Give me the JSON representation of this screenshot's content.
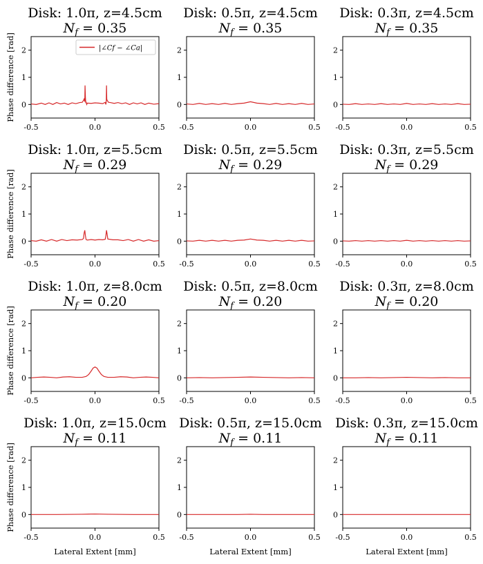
{
  "chart_data": {
    "type": "line",
    "layout": "4x3 grid of small-multiple line plots",
    "series_color": "#d62728",
    "ylabel": "Phase difference [rad]",
    "xlabel": "Lateral Extent [mm]",
    "xlim": [
      -0.5,
      0.5
    ],
    "ylim": [
      -0.5,
      2.5
    ],
    "xticks": [
      "-0.5",
      "0.0",
      "0.5"
    ],
    "yticks": [
      0,
      1,
      2
    ],
    "legend": {
      "label": "|∠Cf − ∠Ca|",
      "placement": "top-right",
      "panel": "row1-col1"
    },
    "nf_prefix": "N",
    "nf_sub": "f",
    "nf_eq": " = ",
    "panels": [
      {
        "title": "Disk: 1.0π, z=4.5cm",
        "nf": "0.35",
        "x": [
          -0.5,
          -0.46,
          -0.42,
          -0.39,
          -0.36,
          -0.33,
          -0.3,
          -0.27,
          -0.24,
          -0.21,
          -0.18,
          -0.15,
          -0.12,
          -0.1,
          -0.09,
          -0.085,
          -0.08,
          -0.078,
          -0.075,
          -0.072,
          -0.07,
          -0.065,
          -0.06,
          -0.03,
          0.0,
          0.03,
          0.06,
          0.08,
          0.085,
          0.088,
          0.09,
          0.092,
          0.095,
          0.1,
          0.105,
          0.12,
          0.15,
          0.18,
          0.21,
          0.24,
          0.27,
          0.3,
          0.33,
          0.36,
          0.39,
          0.42,
          0.46,
          0.5
        ],
        "y": [
          0.02,
          0.0,
          0.05,
          0.0,
          0.06,
          0.0,
          0.07,
          0.02,
          0.05,
          0.0,
          0.06,
          0.03,
          0.07,
          0.08,
          0.15,
          0.2,
          0.1,
          0.7,
          0.25,
          0.05,
          0.1,
          0.0,
          0.05,
          0.04,
          0.06,
          0.05,
          0.03,
          0.08,
          0.0,
          0.1,
          0.7,
          0.2,
          0.15,
          0.12,
          0.08,
          0.07,
          0.04,
          0.07,
          0.03,
          0.06,
          0.0,
          0.06,
          0.02,
          0.06,
          0.0,
          0.05,
          0.01,
          0.03
        ]
      },
      {
        "title": "Disk: 0.5π, z=4.5cm",
        "nf": "0.35",
        "x": [
          -0.5,
          -0.45,
          -0.4,
          -0.35,
          -0.3,
          -0.25,
          -0.2,
          -0.15,
          -0.1,
          -0.05,
          0.0,
          0.05,
          0.1,
          0.15,
          0.2,
          0.25,
          0.3,
          0.35,
          0.4,
          0.45,
          0.5
        ],
        "y": [
          0.02,
          0.0,
          0.04,
          0.0,
          0.03,
          0.0,
          0.04,
          0.0,
          0.03,
          0.05,
          0.1,
          0.05,
          0.03,
          0.0,
          0.04,
          0.0,
          0.03,
          0.0,
          0.04,
          0.0,
          0.02
        ]
      },
      {
        "title": "Disk: 0.3π, z=4.5cm",
        "nf": "0.35",
        "x": [
          -0.5,
          -0.45,
          -0.4,
          -0.35,
          -0.3,
          -0.25,
          -0.2,
          -0.15,
          -0.1,
          -0.05,
          0.0,
          0.05,
          0.1,
          0.15,
          0.2,
          0.25,
          0.3,
          0.35,
          0.4,
          0.45,
          0.5
        ],
        "y": [
          0.01,
          0.0,
          0.03,
          0.0,
          0.02,
          0.0,
          0.03,
          0.0,
          0.02,
          0.0,
          0.04,
          0.0,
          0.02,
          0.0,
          0.03,
          0.0,
          0.02,
          0.0,
          0.03,
          0.0,
          0.01
        ]
      },
      {
        "title": "Disk: 1.0π, z=5.5cm",
        "nf": "0.29",
        "x": [
          -0.5,
          -0.46,
          -0.42,
          -0.38,
          -0.34,
          -0.3,
          -0.26,
          -0.22,
          -0.18,
          -0.14,
          -0.1,
          -0.09,
          -0.085,
          -0.08,
          -0.075,
          -0.07,
          -0.06,
          -0.03,
          0.0,
          0.03,
          0.06,
          0.08,
          0.085,
          0.09,
          0.095,
          0.1,
          0.14,
          0.18,
          0.22,
          0.26,
          0.3,
          0.34,
          0.38,
          0.42,
          0.46,
          0.5
        ],
        "y": [
          0.02,
          0.0,
          0.05,
          0.0,
          0.06,
          0.0,
          0.06,
          0.02,
          0.05,
          0.04,
          0.06,
          0.1,
          0.3,
          0.4,
          0.2,
          0.06,
          0.04,
          0.06,
          0.04,
          0.06,
          0.05,
          0.07,
          0.2,
          0.4,
          0.25,
          0.08,
          0.05,
          0.05,
          0.02,
          0.06,
          0.0,
          0.06,
          0.0,
          0.05,
          0.0,
          0.02
        ]
      },
      {
        "title": "Disk: 0.5π, z=5.5cm",
        "nf": "0.29",
        "x": [
          -0.5,
          -0.45,
          -0.4,
          -0.35,
          -0.3,
          -0.25,
          -0.2,
          -0.15,
          -0.1,
          -0.05,
          0.0,
          0.05,
          0.1,
          0.15,
          0.2,
          0.25,
          0.3,
          0.35,
          0.4,
          0.45,
          0.5
        ],
        "y": [
          0.01,
          0.0,
          0.03,
          0.0,
          0.03,
          0.0,
          0.03,
          0.0,
          0.03,
          0.04,
          0.08,
          0.04,
          0.03,
          0.0,
          0.03,
          0.0,
          0.03,
          0.0,
          0.03,
          0.0,
          0.01
        ]
      },
      {
        "title": "Disk: 0.3π, z=5.5cm",
        "nf": "0.29",
        "x": [
          -0.5,
          -0.45,
          -0.4,
          -0.35,
          -0.3,
          -0.25,
          -0.2,
          -0.15,
          -0.1,
          -0.05,
          0.0,
          0.05,
          0.1,
          0.15,
          0.2,
          0.25,
          0.3,
          0.35,
          0.4,
          0.45,
          0.5
        ],
        "y": [
          0.01,
          0.0,
          0.02,
          0.0,
          0.02,
          0.0,
          0.02,
          0.0,
          0.02,
          0.0,
          0.03,
          0.0,
          0.02,
          0.0,
          0.02,
          0.0,
          0.02,
          0.0,
          0.02,
          0.0,
          0.01
        ]
      },
      {
        "title": "Disk: 1.0π, z=8.0cm",
        "nf": "0.20",
        "x": [
          -0.5,
          -0.45,
          -0.4,
          -0.35,
          -0.3,
          -0.25,
          -0.2,
          -0.15,
          -0.1,
          -0.07,
          -0.05,
          -0.03,
          -0.015,
          0.0,
          0.015,
          0.03,
          0.05,
          0.07,
          0.1,
          0.15,
          0.2,
          0.25,
          0.3,
          0.35,
          0.4,
          0.45,
          0.5
        ],
        "y": [
          0.0,
          0.02,
          0.03,
          0.02,
          0.0,
          0.03,
          0.04,
          0.02,
          0.02,
          0.05,
          0.12,
          0.25,
          0.36,
          0.4,
          0.36,
          0.25,
          0.12,
          0.05,
          0.02,
          0.02,
          0.04,
          0.03,
          0.0,
          0.02,
          0.03,
          0.02,
          0.0
        ]
      },
      {
        "title": "Disk: 0.5π, z=8.0cm",
        "nf": "0.20",
        "x": [
          -0.5,
          -0.4,
          -0.3,
          -0.2,
          -0.1,
          0.0,
          0.1,
          0.2,
          0.3,
          0.4,
          0.5
        ],
        "y": [
          0.0,
          0.01,
          0.0,
          0.01,
          0.02,
          0.03,
          0.02,
          0.01,
          0.0,
          0.01,
          0.0
        ]
      },
      {
        "title": "Disk: 0.3π, z=8.0cm",
        "nf": "0.20",
        "x": [
          -0.5,
          -0.4,
          -0.3,
          -0.2,
          -0.1,
          0.0,
          0.1,
          0.2,
          0.3,
          0.4,
          0.5
        ],
        "y": [
          0.0,
          0.0,
          0.01,
          0.0,
          0.01,
          0.02,
          0.01,
          0.0,
          0.01,
          0.0,
          0.0
        ]
      },
      {
        "title": "Disk: 1.0π, z=15.0cm",
        "nf": "0.11",
        "x": [
          -0.5,
          -0.3,
          -0.1,
          0.0,
          0.1,
          0.3,
          0.5
        ],
        "y": [
          0.0,
          0.0,
          0.01,
          0.02,
          0.01,
          0.0,
          0.0
        ]
      },
      {
        "title": "Disk: 0.5π, z=15.0cm",
        "nf": "0.11",
        "x": [
          -0.5,
          -0.3,
          -0.1,
          0.0,
          0.1,
          0.3,
          0.5
        ],
        "y": [
          0.0,
          0.0,
          0.0,
          0.01,
          0.0,
          0.0,
          0.0
        ]
      },
      {
        "title": "Disk: 0.3π, z=15.0cm",
        "nf": "0.11",
        "x": [
          -0.5,
          -0.3,
          -0.1,
          0.0,
          0.1,
          0.3,
          0.5
        ],
        "y": [
          0.0,
          0.0,
          0.0,
          0.0,
          0.0,
          0.0,
          0.0
        ]
      }
    ]
  }
}
